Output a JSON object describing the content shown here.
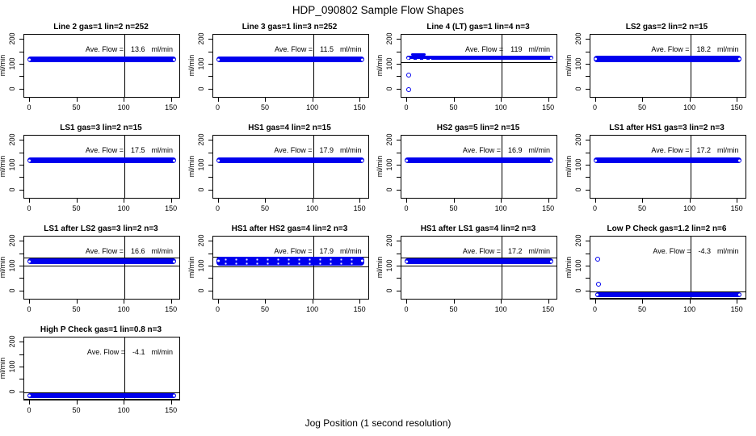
{
  "title": "HDP_090802  Sample Flow Shapes",
  "xlabel": "Jog Position (1 second resolution)",
  "labels": {
    "ave_flow": "Ave. Flow =",
    "unit": "ml/min"
  },
  "colors": {
    "point": "#0000EE",
    "axis": "#000000",
    "background": "#FFFFFF"
  },
  "chart_data": {
    "type": "scatter",
    "grid": [
      4,
      4
    ],
    "axes": {
      "ylabel": "ml/min",
      "xlim": [
        -6,
        158
      ],
      "ylim": [
        -30,
        220
      ],
      "x_ticks": [
        {
          "v": 0,
          "label": "0"
        },
        {
          "v": 50,
          "label": "50"
        },
        {
          "v": 100,
          "label": "100"
        },
        {
          "v": 150,
          "label": "150"
        }
      ],
      "y_ticks": [
        {
          "v": 0,
          "label": "0"
        },
        {
          "v": 50,
          "label": ""
        },
        {
          "v": 100,
          "label": "100"
        },
        {
          "v": 150,
          "label": ""
        },
        {
          "v": 200,
          "label": "200"
        }
      ],
      "vline_x": 100
    },
    "plots": [
      {
        "title": "Line 2 gas=1 lin=2 n=252",
        "ave_flow": "13.6",
        "band": {
          "x0": 0,
          "x1": 152,
          "y_lo": 108,
          "y_hi": 132
        },
        "hlines": [],
        "outliers": []
      },
      {
        "title": "Line 3 gas=1 lin=3 n=252",
        "ave_flow": "11.5",
        "band": {
          "x0": 0,
          "x1": 152,
          "y_lo": 108,
          "y_hi": 132
        },
        "hlines": [],
        "outliers": []
      },
      {
        "title": "Line 4 (LT) gas=1 lin=4 n=3",
        "ave_flow": "119",
        "band": {
          "x0": 2,
          "x1": 152,
          "y_lo": 119,
          "y_hi": 135
        },
        "hlines": [
          110
        ],
        "outliers": [
          [
            2,
            58
          ],
          [
            2,
            0
          ]
        ],
        "bump": {
          "x0": 4,
          "x1": 20,
          "y_lo": 135,
          "y_hi": 144
        },
        "white_dash": {
          "x0": 3,
          "x1": 26,
          "y": 121
        }
      },
      {
        "title": "LS2 gas=2 lin=2 n=15",
        "ave_flow": "18.2",
        "band": {
          "x0": 0,
          "x1": 152,
          "y_lo": 110,
          "y_hi": 134
        },
        "hlines": [],
        "outliers": []
      },
      {
        "title": "LS1 gas=3 lin=2 n=15",
        "ave_flow": "17.5",
        "band": {
          "x0": 0,
          "x1": 152,
          "y_lo": 108,
          "y_hi": 132
        },
        "hlines": [],
        "outliers": []
      },
      {
        "title": "HS1 gas=4 lin=2 n=15",
        "ave_flow": "17.9",
        "band": {
          "x0": 0,
          "x1": 152,
          "y_lo": 108,
          "y_hi": 132
        },
        "hlines": [],
        "outliers": []
      },
      {
        "title": "HS2 gas=5 lin=2 n=15",
        "ave_flow": "16.9",
        "band": {
          "x0": 0,
          "x1": 152,
          "y_lo": 108,
          "y_hi": 132
        },
        "hlines": [],
        "outliers": []
      },
      {
        "title": "LS1 after HS1 gas=3 lin=2 n=3",
        "ave_flow": "17.2",
        "band": {
          "x0": 0,
          "x1": 152,
          "y_lo": 108,
          "y_hi": 132
        },
        "hlines": [],
        "outliers": []
      },
      {
        "title": "LS1 after LS2 gas=3 lin=2 n=3",
        "ave_flow": "16.6",
        "band": {
          "x0": 0,
          "x1": 152,
          "y_lo": 108,
          "y_hi": 132
        },
        "hlines": [
          137,
          104
        ],
        "outliers": []
      },
      {
        "title": "HS1 after HS2 gas=4 lin=2 n=3",
        "ave_flow": "17.9",
        "band": {
          "x0": 0,
          "x1": 152,
          "y_lo": 104,
          "y_hi": 138
        },
        "hlines": [
          140,
          101
        ],
        "outliers": [],
        "speckled": true
      },
      {
        "title": "HS1 after LS1 gas=4 lin=2 n=3",
        "ave_flow": "17.2",
        "band": {
          "x0": 0,
          "x1": 152,
          "y_lo": 108,
          "y_hi": 132
        },
        "hlines": [
          137,
          104
        ],
        "outliers": []
      },
      {
        "title": "Low P Check gas=1.2 lin=2 n=6",
        "ave_flow": "-4.3",
        "band": {
          "x0": 2,
          "x1": 152,
          "y_lo": -25,
          "y_hi": -5
        },
        "hlines": [
          0,
          -28
        ],
        "outliers": [
          [
            2,
            130
          ],
          [
            3,
            28
          ]
        ]
      },
      {
        "title": "High P Check gas=1 lin=0.8 n=3",
        "ave_flow": "-4.1",
        "band": {
          "x0": 0,
          "x1": 152,
          "y_lo": -25,
          "y_hi": -5
        },
        "hlines": [
          0,
          -28
        ],
        "outliers": []
      }
    ]
  }
}
